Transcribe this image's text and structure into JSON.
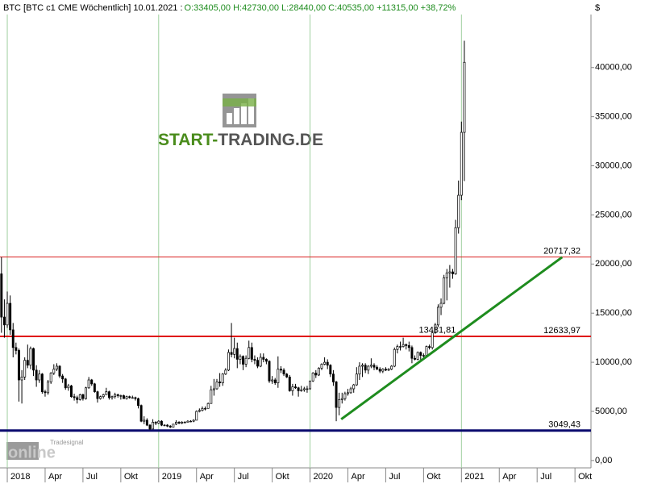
{
  "chart_data": {
    "type": "candlestick",
    "title": "BTC [BTC c1 CME  Wöchentlich] 10.01.2021 :",
    "subtitle": "O:33405,00 H:42730,00 L:28440,00 C:40535,00 +11315,00 +38,72%",
    "y_unit": "$",
    "up_color": "#ffffff",
    "down_color": "#000000",
    "outline_color": "#000000",
    "xlim": [
      -0.5,
      202.5
    ],
    "xticks": [
      {
        "value": 2,
        "label": "2018"
      },
      {
        "value": 15,
        "label": "Apr"
      },
      {
        "value": 28,
        "label": "Jul"
      },
      {
        "value": 41,
        "label": "Okt"
      },
      {
        "value": 54,
        "label": "2019"
      },
      {
        "value": 67,
        "label": "Apr"
      },
      {
        "value": 80,
        "label": "Jul"
      },
      {
        "value": 93,
        "label": "Okt"
      },
      {
        "value": 106,
        "label": "2020"
      },
      {
        "value": 119,
        "label": "Apr"
      },
      {
        "value": 132,
        "label": "Jul"
      },
      {
        "value": 145,
        "label": "Okt"
      },
      {
        "value": 158,
        "label": "2021"
      },
      {
        "value": 171,
        "label": "Apr"
      },
      {
        "value": 184,
        "label": "Jul"
      },
      {
        "value": 197,
        "label": "Okt"
      }
    ],
    "ylim": [
      -750,
      45400
    ],
    "yticks": [
      {
        "value": 0,
        "label": "0,00"
      },
      {
        "value": 5000,
        "label": "5000,00"
      },
      {
        "value": 10000,
        "label": "10000,00"
      },
      {
        "value": 15000,
        "label": "15000,00"
      },
      {
        "value": 20000,
        "label": "20000,00"
      },
      {
        "value": 25000,
        "label": "25000,00"
      },
      {
        "value": 30000,
        "label": "30000,00"
      },
      {
        "value": 35000,
        "label": "35000,00"
      },
      {
        "value": 40000,
        "label": "40000,00"
      }
    ],
    "open": [
      19000,
      14600,
      13800,
      16000,
      13300,
      11500,
      11200,
      8200,
      8500,
      10200,
      9700,
      11400,
      9200,
      8200,
      8800,
      7000,
      6900,
      8000,
      8900,
      9300,
      9600,
      8600,
      8300,
      7400,
      7600,
      6500,
      6400,
      6200,
      6700,
      6300,
      7400,
      8200,
      7800,
      7000,
      6300,
      6500,
      6700,
      7000,
      6400,
      6500,
      6700,
      6600,
      6600,
      6300,
      6500,
      6400,
      6400,
      6300,
      5600,
      4000,
      4100,
      3600,
      3200,
      3900,
      3800,
      4000,
      3600,
      3600,
      3500,
      3400,
      3700,
      3900,
      3800,
      3900,
      3900,
      4000,
      4000,
      4100,
      5000,
      5100,
      5300,
      5300,
      5800,
      7200,
      7300,
      8000,
      7900,
      8800,
      9200,
      11000,
      10800,
      11400,
      10300,
      10600,
      9800,
      10400,
      11500,
      10300,
      10200,
      9600,
      10500,
      10300,
      10100,
      8100,
      8200,
      7900,
      9300,
      9200,
      8800,
      8500,
      7100,
      7500,
      7400,
      7100,
      7200,
      7300,
      7300,
      8100,
      8900,
      8700,
      9400,
      9800,
      10000,
      9700,
      8800,
      8000,
      5400,
      6200,
      6300,
      6800,
      6900,
      7300,
      7700,
      8800,
      9600,
      9700,
      9200,
      9600,
      9700,
      9500,
      9300,
      9100,
      9300,
      9200,
      9300,
      9600,
      11300,
      11600,
      11600,
      11800,
      11700,
      11500,
      10400,
      10300,
      11000,
      10700,
      10700,
      11600,
      11500,
      13000,
      13800,
      15600,
      16000,
      18600,
      19100,
      19200,
      19000,
      23700,
      27000,
      33405
    ],
    "high": [
      20700,
      16400,
      17200,
      16800,
      14000,
      12000,
      11400,
      9200,
      10500,
      11800,
      11600,
      11500,
      9700,
      9200,
      8900,
      7200,
      8200,
      9000,
      9800,
      9900,
      9700,
      8800,
      8400,
      7800,
      7700,
      6800,
      6600,
      6800,
      6800,
      7500,
      8500,
      8300,
      7900,
      7100,
      6600,
      6800,
      7400,
      7100,
      6600,
      6900,
      6800,
      6700,
      6700,
      6600,
      6600,
      6600,
      6500,
      6400,
      5700,
      4500,
      4300,
      3700,
      4200,
      4000,
      4100,
      4100,
      3700,
      3700,
      3600,
      3700,
      4100,
      4000,
      4000,
      4000,
      4100,
      4100,
      4200,
      5100,
      5300,
      5500,
      5500,
      5900,
      7600,
      8300,
      8300,
      8900,
      8900,
      9400,
      11300,
      14000,
      12500,
      12000,
      10800,
      10700,
      10700,
      12200,
      12000,
      10700,
      10500,
      10900,
      10900,
      10400,
      10200,
      8600,
      8400,
      10600,
      9600,
      9400,
      8900,
      8700,
      7800,
      7800,
      7500,
      7600,
      7500,
      7600,
      8100,
      9000,
      9200,
      9500,
      9900,
      10500,
      10300,
      9800,
      9200,
      8100,
      6900,
      6900,
      7000,
      7300,
      7500,
      7800,
      9500,
      10000,
      9900,
      9900,
      9700,
      10400,
      9900,
      9700,
      9500,
      9400,
      9500,
      9400,
      9700,
      11500,
      11800,
      12100,
      12500,
      11900,
      12100,
      11700,
      10700,
      11100,
      11100,
      10900,
      11700,
      11800,
      13300,
      14000,
      15900,
      16500,
      18900,
      19500,
      19900,
      19500,
      24500,
      28500,
      34500,
      42730
    ],
    "low": [
      13000,
      12500,
      13500,
      12800,
      10500,
      10800,
      6000,
      5800,
      8200,
      9400,
      9300,
      8600,
      7500,
      7900,
      6800,
      6500,
      6700,
      7800,
      8700,
      9100,
      8400,
      7900,
      7200,
      7100,
      6400,
      6100,
      5800,
      6100,
      6100,
      6200,
      7300,
      7600,
      6900,
      5900,
      6200,
      6300,
      6700,
      6200,
      6200,
      6300,
      6400,
      6200,
      6300,
      6200,
      6300,
      6300,
      6100,
      5300,
      3900,
      3700,
      3500,
      3100,
      3200,
      3600,
      3700,
      3500,
      3500,
      3400,
      3300,
      3400,
      3600,
      3700,
      3700,
      3800,
      3900,
      3900,
      3900,
      4100,
      4900,
      5000,
      5100,
      5300,
      5800,
      6600,
      7200,
      7500,
      7600,
      8700,
      9100,
      10500,
      10400,
      9400,
      9800,
      9200,
      9500,
      10300,
      10000,
      9800,
      9400,
      9500,
      10000,
      9800,
      7900,
      7800,
      7700,
      7400,
      8900,
      8600,
      8400,
      7000,
      6600,
      7300,
      6500,
      7000,
      7000,
      6900,
      7200,
      8000,
      8400,
      8600,
      9200,
      9700,
      9300,
      8500,
      7600,
      4000,
      4600,
      5800,
      6100,
      6600,
      6800,
      6900,
      7600,
      8200,
      8500,
      8900,
      8800,
      9400,
      9200,
      9200,
      8900,
      8900,
      9100,
      9100,
      9200,
      9500,
      10900,
      11200,
      11500,
      11300,
      11100,
      9900,
      10200,
      10200,
      10200,
      10500,
      10600,
      11300,
      11300,
      12900,
      13600,
      14800,
      15900,
      16300,
      17600,
      18500,
      18900,
      23100,
      26500,
      28440
    ],
    "close": [
      14600,
      13800,
      16000,
      13300,
      11500,
      11200,
      8200,
      8500,
      10200,
      9700,
      11400,
      9200,
      8200,
      8800,
      7000,
      6900,
      8000,
      8900,
      9300,
      9600,
      8600,
      8300,
      7400,
      7600,
      6500,
      6400,
      6200,
      6700,
      6300,
      7400,
      8200,
      7800,
      7000,
      6300,
      6500,
      6700,
      7000,
      6400,
      6500,
      6700,
      6600,
      6600,
      6300,
      6500,
      6400,
      6400,
      6300,
      5600,
      4000,
      4100,
      3600,
      3200,
      3900,
      3800,
      4000,
      3600,
      3600,
      3500,
      3400,
      3700,
      3900,
      3800,
      3900,
      3900,
      4000,
      4000,
      4100,
      5000,
      5100,
      5300,
      5300,
      5800,
      7200,
      7300,
      8000,
      7900,
      8800,
      9200,
      11000,
      10800,
      11400,
      10300,
      10600,
      9800,
      10400,
      11500,
      10300,
      10200,
      9600,
      10500,
      10300,
      10100,
      8100,
      8200,
      7900,
      9300,
      9200,
      8800,
      8500,
      7100,
      7500,
      7400,
      7100,
      7200,
      7300,
      7300,
      8100,
      8900,
      8700,
      9400,
      9800,
      10000,
      9700,
      8800,
      8000,
      5400,
      6200,
      6300,
      6800,
      6900,
      7300,
      7700,
      8800,
      9600,
      9700,
      9200,
      9600,
      9700,
      9500,
      9300,
      9100,
      9300,
      9200,
      9300,
      9600,
      11300,
      11600,
      11600,
      11800,
      11700,
      11500,
      10400,
      10300,
      11000,
      10700,
      10700,
      11600,
      11500,
      13000,
      13800,
      15600,
      16000,
      18600,
      19100,
      19200,
      19000,
      23700,
      27000,
      33405,
      40535
    ],
    "levels": [
      {
        "value": 20717.32,
        "label": "20717,32",
        "color": "#d92020",
        "width": 1
      },
      {
        "value": 12633.97,
        "label": "12633,97",
        "color": "#e01010",
        "width": 2
      },
      {
        "value": 3049.43,
        "label": "3049,43",
        "color": "#0a0a6e",
        "width": 3
      }
    ],
    "trendline": {
      "x": [
        116.7,
        192.6
      ],
      "y": [
        4200,
        20700
      ],
      "color": "#1e8c1e",
      "label_value": 13481.81,
      "label": "13481,81"
    }
  },
  "watermarks": {
    "logo_start": "START-",
    "logo_rest": "TRADING.DE",
    "brand": "Tradesignal",
    "online": "online"
  }
}
